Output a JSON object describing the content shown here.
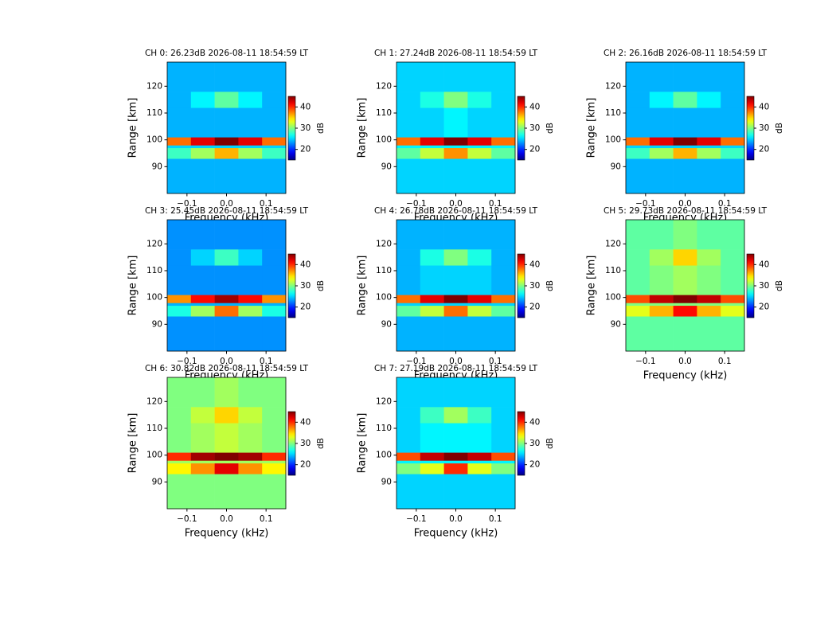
{
  "chart_data": [
    {
      "type": "heatmap",
      "title": "CH 0: 26.23dB 2026-08-11 18:54:59 LT",
      "xlabel": "Frequency (kHz)",
      "ylabel": "Range [km]",
      "colorbar_label": "dB",
      "colormap": "jet",
      "x_edges": [
        -0.15,
        -0.09,
        -0.03,
        0.03,
        0.09,
        0.15
      ],
      "y_edges": [
        80,
        93,
        97,
        98,
        101,
        112,
        118,
        129
      ],
      "z": [
        [
          24,
          24,
          24,
          24,
          24
        ],
        [
          28,
          31,
          36,
          31,
          28
        ],
        [
          25,
          25,
          25,
          25,
          25
        ],
        [
          38,
          42,
          45,
          42,
          38
        ],
        [
          24,
          24,
          24,
          24,
          24
        ],
        [
          24,
          26,
          29,
          26,
          24
        ],
        [
          24,
          24,
          24,
          24,
          24
        ]
      ],
      "xlim": [
        -0.15,
        0.15
      ],
      "ylim": [
        80,
        129
      ],
      "clim": [
        15,
        45
      ],
      "xticks": [
        {
          "value": -0.1,
          "label": "−0.1"
        },
        {
          "value": 0,
          "label": "0.0"
        },
        0.1
      ],
      "yticks": [
        90,
        100,
        110,
        120
      ],
      "cticks": [
        20,
        30,
        40
      ]
    },
    {
      "type": "heatmap",
      "title": "CH 1: 27.24dB 2026-08-11 18:54:59 LT",
      "xlabel": "Frequency (kHz)",
      "ylabel": "Range [km]",
      "colorbar_label": "dB",
      "colormap": "jet",
      "x_edges": [
        -0.15,
        -0.09,
        -0.03,
        0.03,
        0.09,
        0.15
      ],
      "y_edges": [
        80,
        93,
        97,
        98,
        101,
        112,
        118,
        129
      ],
      "z": [
        [
          25,
          25,
          25,
          25,
          25
        ],
        [
          29,
          32,
          37,
          32,
          29
        ],
        [
          26,
          26,
          26,
          26,
          26
        ],
        [
          38,
          42,
          45,
          42,
          38
        ],
        [
          25,
          25,
          26,
          25,
          25
        ],
        [
          25,
          27,
          30,
          27,
          25
        ],
        [
          25,
          25,
          25,
          25,
          25
        ]
      ],
      "xlim": [
        -0.15,
        0.15
      ],
      "ylim": [
        80,
        129
      ],
      "clim": [
        15,
        45
      ],
      "xticks": [
        {
          "value": -0.1,
          "label": "−0.1"
        },
        {
          "value": 0,
          "label": "0.0"
        },
        0.1
      ],
      "yticks": [
        90,
        100,
        110,
        120
      ],
      "cticks": [
        20,
        30,
        40
      ]
    },
    {
      "type": "heatmap",
      "title": "CH 2: 26.16dB 2026-08-11 18:54:59 LT",
      "xlabel": "Frequency (kHz)",
      "ylabel": "Range [km]",
      "colorbar_label": "dB",
      "colormap": "jet",
      "x_edges": [
        -0.15,
        -0.09,
        -0.03,
        0.03,
        0.09,
        0.15
      ],
      "y_edges": [
        80,
        93,
        97,
        98,
        101,
        112,
        118,
        129
      ],
      "z": [
        [
          24,
          24,
          24,
          24,
          24
        ],
        [
          28,
          31,
          36,
          31,
          28
        ],
        [
          25,
          25,
          25,
          25,
          25
        ],
        [
          38,
          42,
          45,
          42,
          38
        ],
        [
          24,
          24,
          24,
          24,
          24
        ],
        [
          24,
          26,
          29,
          26,
          24
        ],
        [
          24,
          24,
          24,
          24,
          24
        ]
      ],
      "xlim": [
        -0.15,
        0.15
      ],
      "ylim": [
        80,
        129
      ],
      "clim": [
        15,
        45
      ],
      "xticks": [
        {
          "value": -0.1,
          "label": "−0.1"
        },
        {
          "value": 0,
          "label": "0.0"
        },
        0.1
      ],
      "yticks": [
        90,
        100,
        110,
        120
      ],
      "cticks": [
        20,
        30,
        40
      ]
    },
    {
      "type": "heatmap",
      "title": "CH 3: 25.45dB 2026-08-11 18:54:59 LT",
      "xlabel": "Frequency (kHz)",
      "ylabel": "Range [km]",
      "colorbar_label": "dB",
      "colormap": "jet",
      "x_edges": [
        -0.15,
        -0.09,
        -0.03,
        0.03,
        0.09,
        0.15
      ],
      "y_edges": [
        80,
        93,
        97,
        98,
        101,
        112,
        118,
        129
      ],
      "z": [
        [
          23,
          23,
          23,
          23,
          23
        ],
        [
          27,
          31,
          38,
          31,
          27
        ],
        [
          24,
          24,
          24,
          24,
          24
        ],
        [
          37,
          41,
          44,
          41,
          37
        ],
        [
          23,
          23,
          23,
          23,
          23
        ],
        [
          23,
          25,
          28,
          25,
          23
        ],
        [
          23,
          23,
          23,
          23,
          23
        ]
      ],
      "xlim": [
        -0.15,
        0.15
      ],
      "ylim": [
        80,
        129
      ],
      "clim": [
        15,
        45
      ],
      "xticks": [
        {
          "value": -0.1,
          "label": "−0.1"
        },
        {
          "value": 0,
          "label": "0.0"
        },
        0.1
      ],
      "yticks": [
        90,
        100,
        110,
        120
      ],
      "cticks": [
        20,
        30,
        40
      ]
    },
    {
      "type": "heatmap",
      "title": "CH 4: 26.78dB 2026-08-11 18:54:59 LT",
      "xlabel": "Frequency (kHz)",
      "ylabel": "Range [km]",
      "colorbar_label": "dB",
      "colormap": "jet",
      "x_edges": [
        -0.15,
        -0.09,
        -0.03,
        0.03,
        0.09,
        0.15
      ],
      "y_edges": [
        80,
        93,
        97,
        98,
        101,
        112,
        118,
        129
      ],
      "z": [
        [
          24,
          24,
          24,
          24,
          24
        ],
        [
          29,
          32,
          38,
          32,
          29
        ],
        [
          25,
          25,
          25,
          25,
          25
        ],
        [
          38,
          42,
          45,
          42,
          38
        ],
        [
          24,
          25,
          25,
          25,
          24
        ],
        [
          24,
          27,
          30,
          27,
          24
        ],
        [
          24,
          24,
          24,
          24,
          24
        ]
      ],
      "xlim": [
        -0.15,
        0.15
      ],
      "ylim": [
        80,
        129
      ],
      "clim": [
        15,
        45
      ],
      "xticks": [
        {
          "value": -0.1,
          "label": "−0.1"
        },
        {
          "value": 0,
          "label": "0.0"
        },
        0.1
      ],
      "yticks": [
        90,
        100,
        110,
        120
      ],
      "cticks": [
        20,
        30,
        40
      ]
    },
    {
      "type": "heatmap",
      "title": "CH 5: 29.73dB 2026-08-11 18:54:59 LT",
      "xlabel": "Frequency (kHz)",
      "ylabel": "Range [km]",
      "colorbar_label": "dB",
      "colormap": "jet",
      "x_edges": [
        -0.15,
        -0.09,
        -0.03,
        0.03,
        0.09,
        0.15
      ],
      "y_edges": [
        80,
        93,
        97,
        98,
        101,
        112,
        118,
        129
      ],
      "z": [
        [
          29,
          29,
          29,
          29,
          29
        ],
        [
          33,
          36,
          41,
          36,
          33
        ],
        [
          30,
          30,
          30,
          30,
          30
        ],
        [
          39,
          43,
          45,
          43,
          39
        ],
        [
          29,
          30,
          31,
          30,
          29
        ],
        [
          29,
          31,
          35,
          31,
          29
        ],
        [
          29,
          29,
          30,
          29,
          29
        ]
      ],
      "xlim": [
        -0.15,
        0.15
      ],
      "ylim": [
        80,
        129
      ],
      "clim": [
        15,
        45
      ],
      "xticks": [
        {
          "value": -0.1,
          "label": "−0.1"
        },
        {
          "value": 0,
          "label": "0.0"
        },
        0.1
      ],
      "yticks": [
        90,
        100,
        110,
        120
      ],
      "cticks": [
        20,
        30,
        40
      ]
    },
    {
      "type": "heatmap",
      "title": "CH 6: 30.82dB 2026-08-11 18:54:59 LT",
      "xlabel": "Frequency (kHz)",
      "ylabel": "Range [km]",
      "colorbar_label": "dB",
      "colormap": "jet",
      "x_edges": [
        -0.15,
        -0.09,
        -0.03,
        0.03,
        0.09,
        0.15
      ],
      "y_edges": [
        80,
        93,
        97,
        98,
        101,
        112,
        118,
        129
      ],
      "z": [
        [
          30,
          30,
          30,
          30,
          30
        ],
        [
          34,
          37,
          42,
          37,
          34
        ],
        [
          31,
          31,
          31,
          31,
          31
        ],
        [
          40,
          44,
          45,
          44,
          40
        ],
        [
          30,
          31,
          32,
          31,
          30
        ],
        [
          30,
          32,
          35,
          32,
          30
        ],
        [
          30,
          30,
          31,
          30,
          30
        ]
      ],
      "xlim": [
        -0.15,
        0.15
      ],
      "ylim": [
        80,
        129
      ],
      "clim": [
        15,
        45
      ],
      "xticks": [
        {
          "value": -0.1,
          "label": "−0.1"
        },
        {
          "value": 0,
          "label": "0.0"
        },
        0.1
      ],
      "yticks": [
        90,
        100,
        110,
        120
      ],
      "cticks": [
        20,
        30,
        40
      ]
    },
    {
      "type": "heatmap",
      "title": "CH 7: 27.19dB 2026-08-11 18:54:59 LT",
      "xlabel": "Frequency (kHz)",
      "ylabel": "Range [km]",
      "colorbar_label": "dB",
      "colormap": "jet",
      "x_edges": [
        -0.15,
        -0.09,
        -0.03,
        0.03,
        0.09,
        0.15
      ],
      "y_edges": [
        80,
        93,
        97,
        98,
        101,
        112,
        118,
        129
      ],
      "z": [
        [
          25,
          25,
          25,
          25,
          25
        ],
        [
          30,
          33,
          40,
          33,
          30
        ],
        [
          26,
          26,
          26,
          26,
          26
        ],
        [
          39,
          43,
          45,
          43,
          39
        ],
        [
          25,
          26,
          26,
          26,
          25
        ],
        [
          25,
          28,
          31,
          28,
          25
        ],
        [
          25,
          25,
          25,
          25,
          25
        ]
      ],
      "xlim": [
        -0.15,
        0.15
      ],
      "ylim": [
        80,
        129
      ],
      "clim": [
        15,
        45
      ],
      "xticks": [
        {
          "value": -0.1,
          "label": "−0.1"
        },
        {
          "value": 0,
          "label": "0.0"
        },
        0.1
      ],
      "yticks": [
        90,
        100,
        110,
        120
      ],
      "cticks": [
        20,
        30,
        40
      ]
    }
  ]
}
